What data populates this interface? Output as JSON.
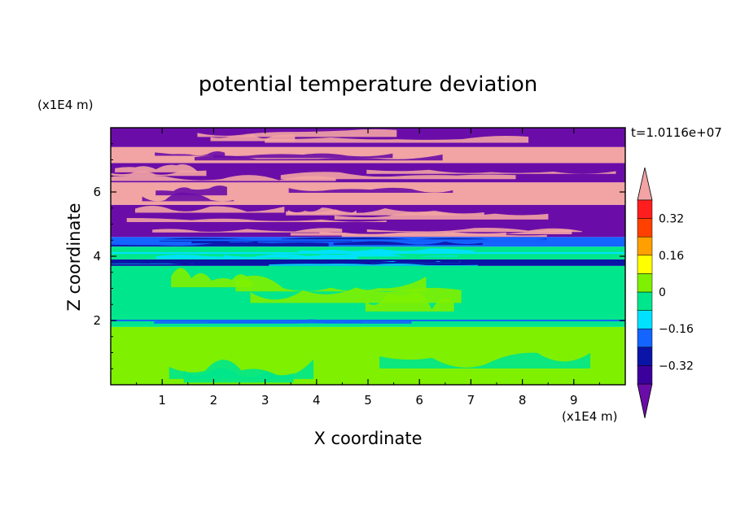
{
  "chart_data": {
    "type": "heatmap",
    "title": "potential temperature deviation",
    "xlabel": "X coordinate",
    "ylabel": "Z coordinate",
    "x_unit": "(x1E4 m)",
    "y_unit": "(x1E4 m)",
    "time_label": "t=1.0116e+07",
    "xlim": [
      0,
      10
    ],
    "ylim": [
      0,
      8
    ],
    "x_ticks": [
      "1",
      "2",
      "3",
      "4",
      "5",
      "6",
      "7",
      "8",
      "9"
    ],
    "y_ticks": [
      "2",
      "4",
      "6"
    ],
    "colorbar": {
      "tick_labels": [
        "0.32",
        "0.16",
        "0",
        "−0.16",
        "−0.32"
      ],
      "levels": [
        -0.4,
        -0.32,
        -0.24,
        -0.16,
        -0.08,
        0,
        0.08,
        0.16,
        0.24,
        0.32,
        0.4
      ],
      "colors": [
        "#6a0da8",
        "#3b009c",
        "#0a14a6",
        "#1464ff",
        "#00e1ff",
        "#00e68c",
        "#7ff000",
        "#ffff00",
        "#ffa000",
        "#ff4000",
        "#ff1e1e",
        "#f2a3a3"
      ]
    },
    "bands": [
      {
        "z": [
          0.0,
          1.8
        ],
        "dominant": "#7ff000",
        "secondary": "#00e68c"
      },
      {
        "z": [
          1.8,
          2.1
        ],
        "dominant": "#00e68c",
        "secondary": "#1464ff"
      },
      {
        "z": [
          2.1,
          3.7
        ],
        "dominant": "#00e68c",
        "secondary": "#7ff000"
      },
      {
        "z": [
          3.7,
          3.9
        ],
        "dominant": "#0a14a6",
        "secondary": "#00e1ff"
      },
      {
        "z": [
          3.9,
          4.3
        ],
        "dominant": "#00e68c",
        "secondary": "#00e1ff"
      },
      {
        "z": [
          4.3,
          4.6
        ],
        "dominant": "#1464ff",
        "secondary": "#0a14a6"
      },
      {
        "z": [
          4.6,
          5.0
        ],
        "dominant": "#6a0da8",
        "secondary": "#f2a3a3"
      },
      {
        "z": [
          5.0,
          5.6
        ],
        "dominant": "#6a0da8",
        "secondary": "#f2a3a3"
      },
      {
        "z": [
          5.6,
          6.3
        ],
        "dominant": "#f2a3a3",
        "secondary": "#6a0da8"
      },
      {
        "z": [
          6.3,
          6.9
        ],
        "dominant": "#6a0da8",
        "secondary": "#f2a3a3"
      },
      {
        "z": [
          6.9,
          7.4
        ],
        "dominant": "#f2a3a3",
        "secondary": "#6a0da8"
      },
      {
        "z": [
          7.4,
          8.0
        ],
        "dominant": "#6a0da8",
        "secondary": "#f2a3a3"
      }
    ]
  }
}
